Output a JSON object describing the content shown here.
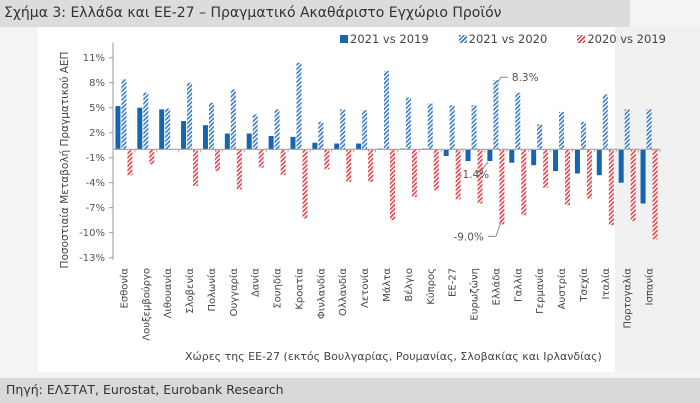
{
  "title": "Σχήμα 3: Ελλάδα και ΕΕ-27 – Πραγματικό Ακαθάριστο Εγχώριο Προϊόν",
  "source": "Πηγή: ΕΛΣΤΑΤ, Eurostat, Eurobank Research",
  "chart_data": {
    "type": "bar",
    "title": "Σχήμα 3: Ελλάδα και ΕΕ-27 – Πραγματικό Ακαθάριστο Εγχώριο Προϊόν",
    "xlabel": "Χώρες της ΕΕ-27 (εκτός Βουλγαρίας, Ρουμανίας, Σλοβακίας και Ιρλανδίας)",
    "ylabel": "Ποσοστιαία Μεταβολή Πραγματικού ΑΕΠ",
    "ylim": [
      -13,
      11
    ],
    "yticks": [
      11,
      8,
      5,
      2,
      -1,
      -4,
      -7,
      -10,
      -13
    ],
    "ytick_labels": [
      "11%",
      "8%",
      "5%",
      "2%",
      "-1%",
      "-4%",
      "-7%",
      "-10%",
      "-13%"
    ],
    "grid": false,
    "legend_position": "top-right",
    "categories": [
      "Εσθονία",
      "Λουξεμβούργο",
      "Λιθουανία",
      "Σλοβενία",
      "Πολωνία",
      "Ουγγαρία",
      "Δανία",
      "Σουηδία",
      "Κροατία",
      "Φινλανδία",
      "Ολλανδία",
      "Λετονία",
      "Μάλτα",
      "Βέλγιο",
      "Κύπρος",
      "ΕΕ-27",
      "Ευρωζώνη",
      "Ελλάδα",
      "Γαλλία",
      "Γερμανία",
      "Αυστρία",
      "Τσεχία",
      "Ιταλία",
      "Πορτογαλία",
      "Ισπανία"
    ],
    "series": [
      {
        "name": "2021 vs 2019",
        "style": "solid",
        "color": "#1565b0",
        "values": [
          5.2,
          5.0,
          4.8,
          3.4,
          2.9,
          1.9,
          1.9,
          1.6,
          1.5,
          0.8,
          0.7,
          0.7,
          0.1,
          0.1,
          0.1,
          -0.8,
          -1.4,
          -1.4,
          -1.6,
          -1.9,
          -2.6,
          -2.9,
          -3.1,
          -4.0,
          -6.5
        ]
      },
      {
        "name": "2021 vs 2020",
        "style": "hatched",
        "color": "#3a7bc8",
        "values": [
          8.4,
          6.8,
          4.9,
          8.0,
          5.6,
          7.2,
          4.2,
          4.8,
          10.4,
          3.3,
          4.8,
          4.7,
          9.4,
          6.2,
          5.5,
          5.3,
          5.3,
          8.3,
          6.8,
          3.0,
          4.5,
          3.3,
          6.6,
          4.8,
          4.8
        ]
      },
      {
        "name": "2020 vs 2019",
        "style": "hatched",
        "color": "#e0454d",
        "values": [
          -3.1,
          -1.8,
          0.0,
          -4.4,
          -2.6,
          -4.8,
          -2.2,
          -3.1,
          -8.3,
          -2.4,
          -3.9,
          -3.9,
          -8.5,
          -5.7,
          -4.9,
          -6.0,
          -6.5,
          -9.0,
          -7.9,
          -4.6,
          -6.7,
          -5.9,
          -9.1,
          -8.6,
          -10.8
        ]
      }
    ],
    "annotations": [
      {
        "category": "Ελλάδα",
        "series": "2021 vs 2020",
        "text": "8.3%"
      },
      {
        "category": "Ελλάδα",
        "series": "2021 vs 2019",
        "text": "-1.4%"
      },
      {
        "category": "Ελλάδα",
        "series": "2020 vs 2019",
        "text": "-9.0%"
      }
    ]
  }
}
